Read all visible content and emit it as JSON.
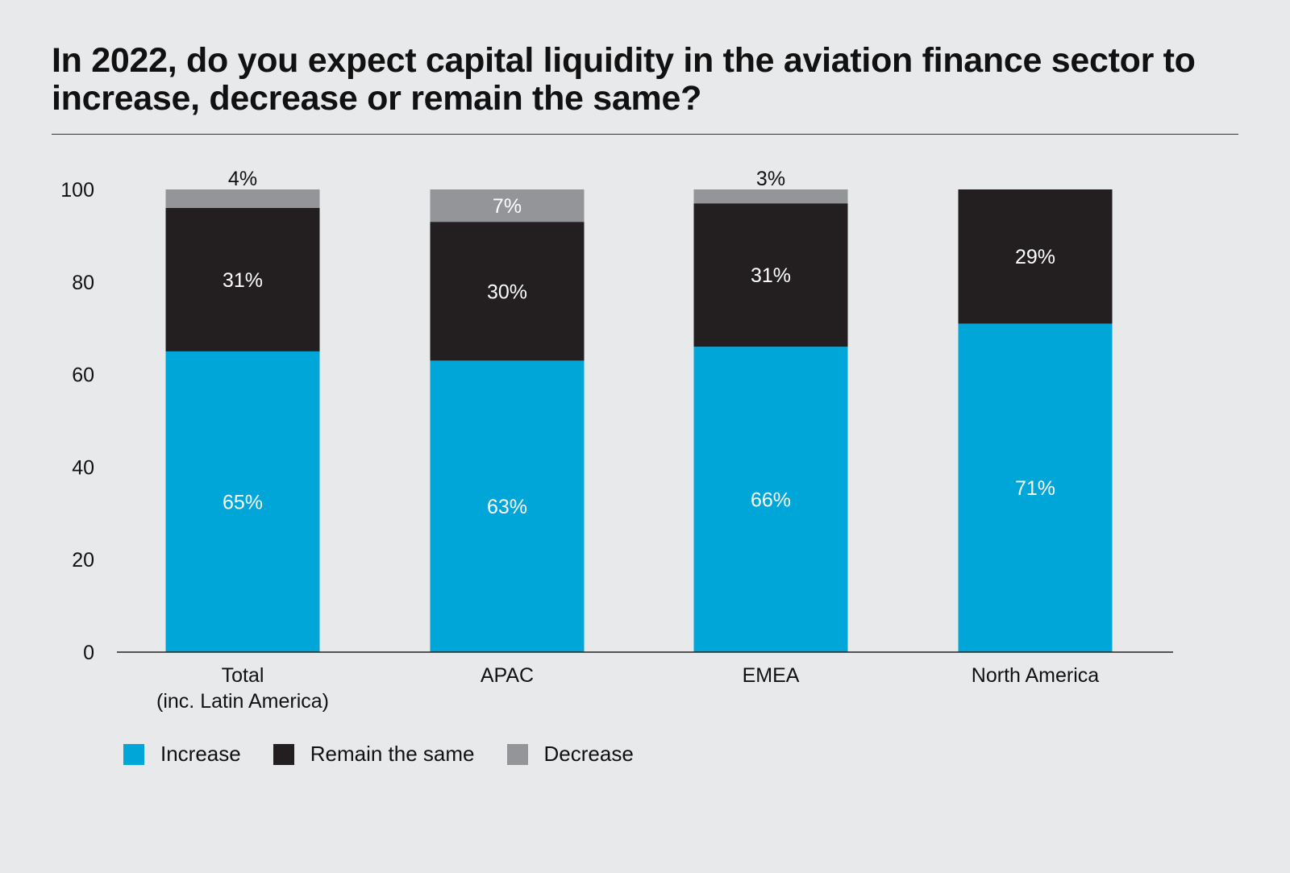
{
  "title": "In 2022, do you expect capital liquidity in the aviation finance sector to increase, decrease or remain the same?",
  "chart_data": {
    "type": "bar",
    "stacked": true,
    "categories": [
      [
        "Total",
        "(inc. Latin America)"
      ],
      [
        "APAC"
      ],
      [
        "EMEA"
      ],
      [
        "North America"
      ]
    ],
    "series": [
      {
        "name": "Increase",
        "color": "#00a6d8",
        "label_color": "#ffffff",
        "values": [
          65,
          63,
          66,
          71
        ],
        "labels": [
          "65%",
          "63%",
          "66%",
          "71%"
        ]
      },
      {
        "name": "Remain the same",
        "color": "#231f20",
        "label_color": "#ffffff",
        "values": [
          31,
          30,
          31,
          29
        ],
        "labels": [
          "31%",
          "30%",
          "31%",
          "29%"
        ]
      },
      {
        "name": "Decrease",
        "color": "#939598",
        "label_color": "#ffffff",
        "values": [
          4,
          7,
          3,
          0
        ],
        "labels": [
          "4%",
          "7%",
          "3%",
          ""
        ]
      }
    ],
    "yticks": [
      0,
      20,
      40,
      60,
      80,
      100
    ],
    "ylim": [
      0,
      100
    ],
    "legend_position": "bottom-left"
  }
}
